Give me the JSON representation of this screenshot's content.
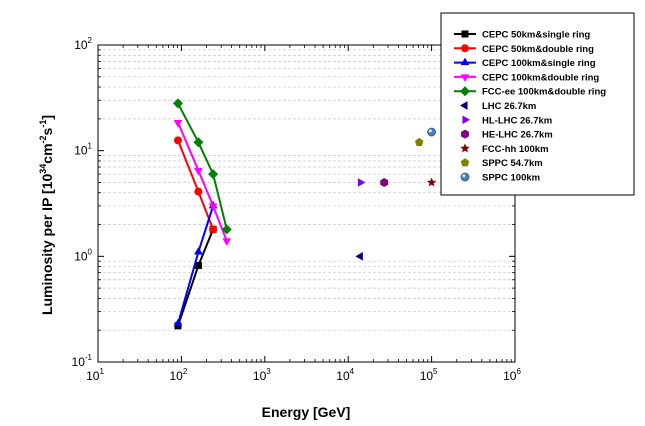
{
  "chart_data": {
    "type": "scatter",
    "xscale": "log",
    "yscale": "log",
    "xlim": [
      10,
      1000000
    ],
    "ylim": [
      0.1,
      100
    ],
    "xlabel": "Energy [GeV]",
    "ylabel": "Luminosity per IP [10^34 cm^-2 s^-1]",
    "ylabel_parts": {
      "a": "Luminosity per IP [10",
      "b": "34",
      "c": "cm",
      "d": "-2",
      "e": "s",
      "f": "-1",
      "g": "]"
    },
    "xticks": [
      {
        "base": "10",
        "exp": "1"
      },
      {
        "base": "10",
        "exp": "2"
      },
      {
        "base": "10",
        "exp": "3"
      },
      {
        "base": "10",
        "exp": "4"
      },
      {
        "base": "10",
        "exp": "5"
      },
      {
        "base": "10",
        "exp": "6"
      }
    ],
    "yticks": [
      {
        "base": "10",
        "exp": "-1"
      },
      {
        "base": "10",
        "exp": "0"
      },
      {
        "base": "10",
        "exp": "1"
      },
      {
        "base": "10",
        "exp": "2"
      }
    ],
    "grid": "horizontal-minor-dashed",
    "legend_position": "top-right",
    "series": [
      {
        "name": "CEPC 50km&single ring",
        "color": "#000000",
        "marker": "square",
        "line": true,
        "points": [
          [
            91,
            0.22
          ],
          [
            160,
            0.82
          ],
          [
            240,
            1.8
          ]
        ]
      },
      {
        "name": "CEPC 50km&double ring",
        "color": "#ff0000",
        "marker": "circle",
        "line": true,
        "points": [
          [
            91,
            12.5
          ],
          [
            160,
            4.1
          ],
          [
            240,
            1.8
          ]
        ]
      },
      {
        "name": "CEPC 100km&single ring",
        "color": "#0000ff",
        "marker": "triangle-up",
        "line": true,
        "points": [
          [
            91,
            0.23
          ],
          [
            160,
            1.1
          ],
          [
            240,
            3.0
          ]
        ]
      },
      {
        "name": "CEPC 100km&double ring",
        "color": "#ff00ff",
        "marker": "triangle-down",
        "line": true,
        "points": [
          [
            91,
            18.5
          ],
          [
            160,
            6.5
          ],
          [
            240,
            3.0
          ],
          [
            350,
            1.4
          ]
        ]
      },
      {
        "name": "FCC-ee 100km&double ring",
        "color": "#008000",
        "marker": "diamond",
        "line": true,
        "points": [
          [
            91,
            28
          ],
          [
            160,
            12
          ],
          [
            240,
            6
          ],
          [
            350,
            1.8
          ]
        ]
      },
      {
        "name": "LHC 26.7km",
        "color": "#000080",
        "marker": "triangle-left",
        "line": false,
        "points": [
          [
            14000,
            1.0
          ]
        ]
      },
      {
        "name": "HL-LHC 26.7km",
        "color": "#8000ff",
        "marker": "triangle-right",
        "line": false,
        "points": [
          [
            14000,
            5.0
          ]
        ]
      },
      {
        "name": "HE-LHC 26.7km",
        "color": "#800080",
        "marker": "hexagon",
        "line": false,
        "points": [
          [
            27000,
            5.0
          ]
        ]
      },
      {
        "name": "FCC-hh 100km",
        "color": "#800000",
        "marker": "star",
        "line": false,
        "points": [
          [
            100000,
            5.0
          ]
        ]
      },
      {
        "name": "SPPC 54.7km",
        "color": "#808000",
        "marker": "pentagon",
        "line": false,
        "points": [
          [
            71000,
            12.0
          ]
        ]
      },
      {
        "name": "SPPC 100km",
        "color": "#4a7fb8",
        "marker": "circle-shaded",
        "line": false,
        "points": [
          [
            100000,
            15.0
          ]
        ]
      }
    ]
  }
}
